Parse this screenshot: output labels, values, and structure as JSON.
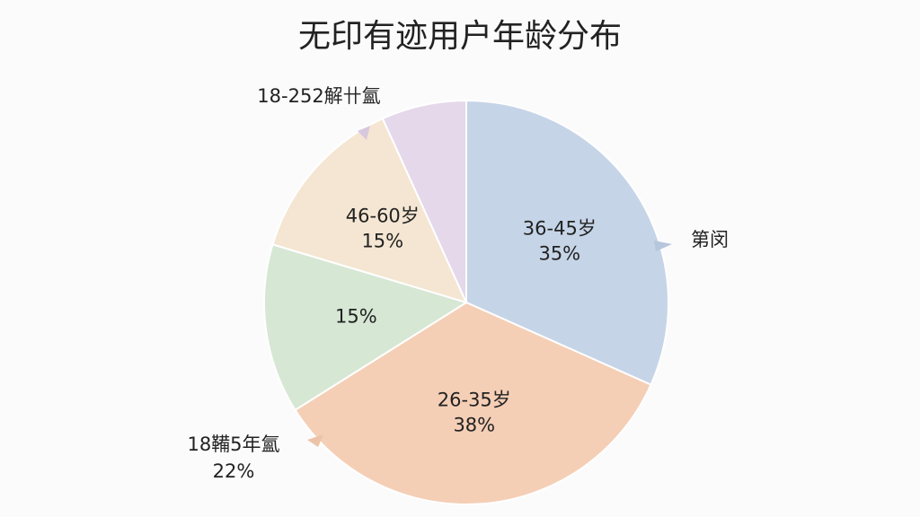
{
  "chart_data": {
    "type": "pie",
    "title": "无印有迹用户年龄分布",
    "categories": [
      "36-45岁",
      "26-35岁",
      null,
      "46-60岁",
      null
    ],
    "values": [
      35,
      38,
      15,
      15,
      7.5
    ],
    "value_labels": [
      "35%",
      "38%",
      "15%",
      "15%",
      null
    ],
    "colors": [
      "#c6d4e7",
      "#f4cfb6",
      "#d6e7d4",
      "#f4e6d2",
      "#e4d8ea"
    ],
    "annotations": [
      "18-252解卄氳",
      "第闵",
      "18鞴5年氳",
      "22%"
    ]
  }
}
